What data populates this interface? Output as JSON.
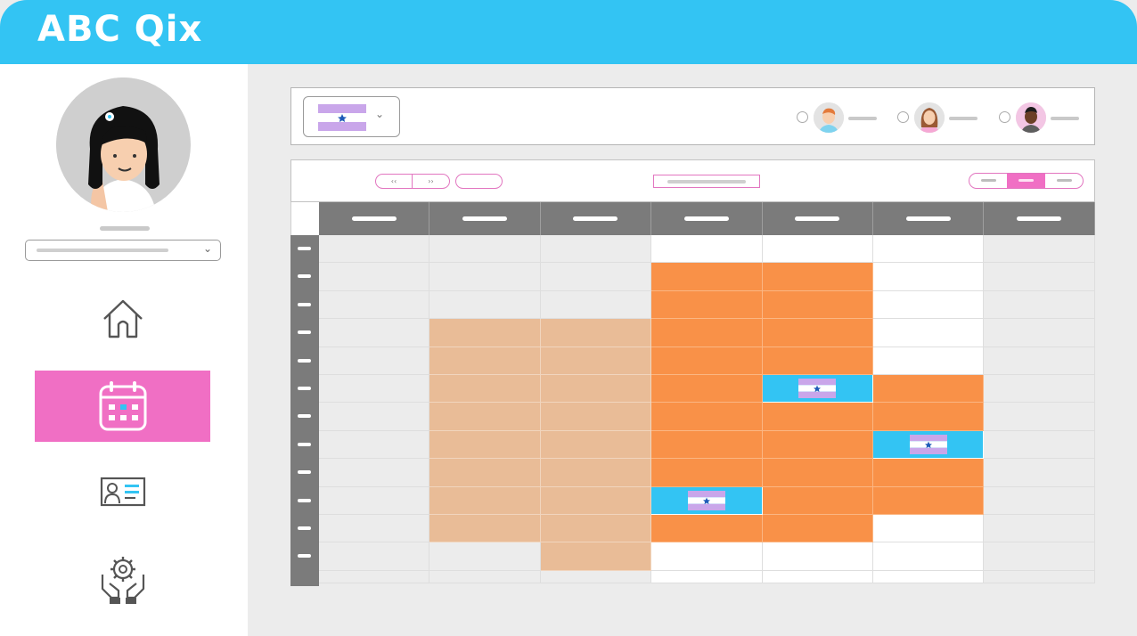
{
  "app": {
    "title": "ABC Qix"
  },
  "colors": {
    "topbar": "#33c4f3",
    "accent_pink": "#f06fc4",
    "orange": "#f99148",
    "peach": "#e9bc97",
    "blue": "#33c4f3",
    "header_gray": "#7b7b7b"
  },
  "sidebar": {
    "avatar_icon": "user-avatar-girl",
    "nav": [
      {
        "id": "home",
        "icon": "home-icon",
        "active": false
      },
      {
        "id": "calendar",
        "icon": "calendar-icon",
        "active": true
      },
      {
        "id": "profile",
        "icon": "id-card-icon",
        "active": false
      },
      {
        "id": "services",
        "icon": "hands-gear-icon",
        "active": false
      }
    ]
  },
  "filterbar": {
    "selected_flag_icon": "flag-icon",
    "people": [
      {
        "icon": "avatar-man-ginger",
        "selected": false
      },
      {
        "icon": "avatar-woman-brown-hair",
        "selected": false
      },
      {
        "icon": "avatar-man-dark",
        "selected": false
      }
    ]
  },
  "calendar": {
    "prev_label": "‹‹",
    "next_label": "››",
    "view_options": 3,
    "active_view_index": 1,
    "day_count": 7,
    "slot_count": 12
  }
}
